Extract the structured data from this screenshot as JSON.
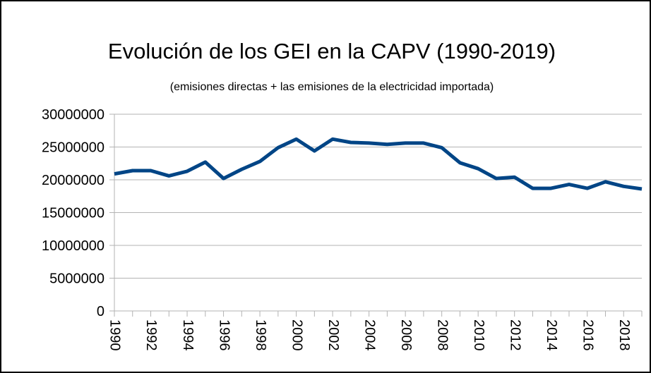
{
  "chart_data": {
    "type": "line",
    "title": "Evolución de los GEI en la CAPV (1990-2019)",
    "subtitle": "(emisiones directas + las emisiones de la electricidad importada)",
    "categories": [
      "1990",
      null,
      "1992",
      null,
      "1994",
      null,
      "1996",
      null,
      "1998",
      null,
      "2000",
      null,
      "2002",
      null,
      "2004",
      null,
      "2006",
      null,
      "2008",
      null,
      "2010",
      null,
      "2012",
      null,
      "2014",
      null,
      "2016",
      null,
      "2018",
      null
    ],
    "series": [
      {
        "color": "#004586",
        "values": [
          20900000,
          21400000,
          21400000,
          20600000,
          21300000,
          22700000,
          20200000,
          21600000,
          22800000,
          24900000,
          26200000,
          24400000,
          26200000,
          25700000,
          25600000,
          25400000,
          25600000,
          25600000,
          24900000,
          22600000,
          21700000,
          20200000,
          20400000,
          18700000,
          18700000,
          19300000,
          18700000,
          19700000,
          19000000,
          18600000
        ]
      }
    ],
    "ylim": [
      0,
      30000000
    ],
    "yticks": [
      0,
      5000000,
      10000000,
      15000000,
      20000000,
      25000000,
      30000000
    ],
    "grid": true
  }
}
